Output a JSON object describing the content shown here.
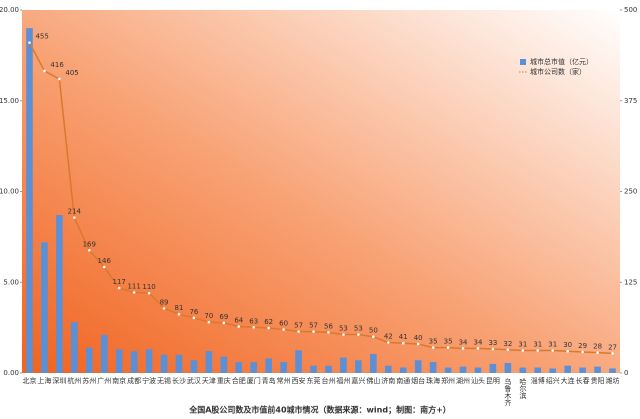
{
  "chart_data": {
    "type": "bar-line",
    "title": "全国A股公司数及市值前40城市情况（数据来源：wind；制图：南方+）",
    "categories": [
      "北京",
      "上海",
      "深圳",
      "杭州",
      "苏州",
      "广州",
      "南京",
      "成都",
      "宁波",
      "无锡",
      "长沙",
      "武汉",
      "天津",
      "重庆",
      "合肥",
      "厦门",
      "青岛",
      "常州",
      "西安",
      "东莞",
      "台州",
      "福州",
      "嘉兴",
      "佛山",
      "济南",
      "南通",
      "烟台",
      "珠海",
      "郑州",
      "湖州",
      "汕头",
      "昆明",
      "乌鲁木齐",
      "哈尔滨",
      "淄博",
      "绍兴",
      "大连",
      "长春",
      "贵阳",
      "潍坊"
    ],
    "series": [
      {
        "name": "城市总市值（亿元）",
        "kind": "bar",
        "color": "#5b8fd6",
        "values": [
          19.0,
          7.2,
          8.7,
          2.8,
          1.4,
          2.1,
          1.3,
          1.2,
          1.3,
          1.0,
          1.0,
          0.7,
          1.2,
          0.9,
          0.6,
          0.6,
          0.8,
          0.6,
          1.25,
          0.4,
          0.4,
          0.85,
          0.7,
          1.05,
          0.4,
          0.3,
          0.7,
          0.6,
          0.3,
          0.35,
          0.3,
          0.5,
          0.55,
          0.3,
          0.3,
          0.25,
          0.4,
          0.3,
          0.35,
          0.25
        ]
      },
      {
        "name": "城市公司数（家）",
        "kind": "line",
        "axis": "y2",
        "color": "#d9792e",
        "values": [
          455,
          416,
          405,
          214,
          169,
          146,
          117,
          111,
          110,
          89,
          81,
          76,
          70,
          69,
          64,
          63,
          62,
          60,
          57,
          57,
          56,
          53,
          53,
          50,
          42,
          41,
          40,
          35,
          35,
          34,
          34,
          33,
          32,
          31,
          31,
          31,
          30,
          29,
          28,
          27
        ]
      }
    ],
    "ylim": [
      0,
      20
    ],
    "yticks": [
      {
        "value": 0,
        "label": "0.00"
      },
      {
        "value": 5,
        "label": "5.00"
      },
      {
        "value": 10,
        "label": "10.00"
      },
      {
        "value": 15,
        "label": "15.00"
      },
      {
        "value": 20,
        "label": "20.00"
      }
    ],
    "y2lim": [
      0,
      500
    ],
    "y2ticks": [
      0,
      125,
      250,
      375,
      500
    ],
    "legend": "upper right"
  }
}
